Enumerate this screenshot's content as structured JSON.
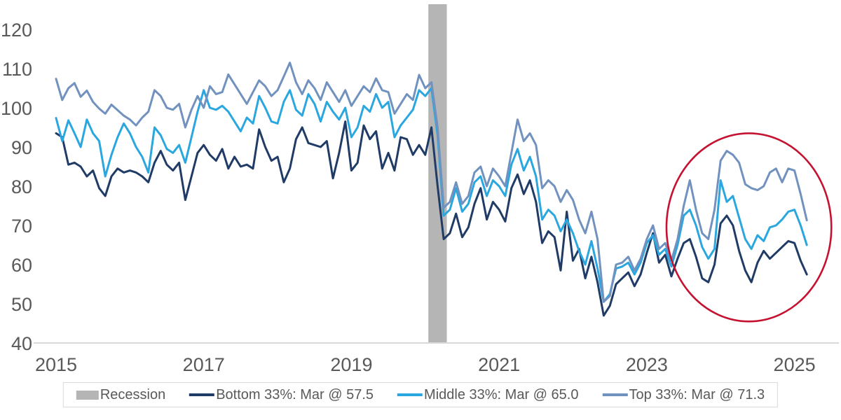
{
  "page": {
    "background": "#ffffff"
  },
  "chart_data": {
    "type": "line",
    "title": "",
    "xlabel": "",
    "ylabel": "",
    "grid": false,
    "x_unit": "month",
    "start_month": "2015-01",
    "end_month": "2025-03",
    "y_ticks": [
      40,
      50,
      60,
      70,
      80,
      90,
      100,
      110,
      120
    ],
    "ylim": [
      40,
      123
    ],
    "x_tick_labels": [
      "2015",
      "2017",
      "2019",
      "2021",
      "2023",
      "2025"
    ],
    "x_tick_month_indices": [
      0,
      24,
      48,
      72,
      96,
      120
    ],
    "tick_label_color": "#595959",
    "axis_line_color": "#d9d9d9",
    "recession_band": {
      "label": "Recession",
      "start_month": "2020-02",
      "end_month": "2020-04",
      "start_month_index": 61,
      "end_month_index": 63,
      "color": "#b5b5b5"
    },
    "series": [
      {
        "name": "Bottom 33%: Mar @ 57.5",
        "latest_point": {
          "month": "2025-03",
          "value": 57.5
        },
        "color": "#1f3b66",
        "values": [
          93.5,
          92.5,
          85.5,
          86.0,
          85.0,
          82.5,
          84.0,
          79.5,
          77.5,
          82.5,
          84.5,
          83.5,
          84.0,
          83.5,
          82.5,
          81.0,
          86.0,
          89.0,
          85.5,
          84.0,
          86.0,
          76.5,
          82.5,
          88.5,
          90.5,
          88.0,
          86.5,
          89.5,
          84.5,
          87.5,
          85.0,
          85.5,
          84.5,
          94.5,
          90.0,
          86.5,
          87.5,
          81.0,
          84.5,
          92.0,
          95.0,
          91.0,
          90.5,
          90.0,
          91.5,
          82.0,
          88.5,
          96.5,
          84.0,
          86.0,
          95.5,
          92.0,
          94.0,
          84.5,
          88.5,
          84.0,
          92.5,
          92.0,
          88.0,
          90.5,
          88.0,
          95.0,
          80.0,
          66.5,
          68.0,
          73.0,
          67.0,
          69.5,
          75.5,
          79.5,
          71.5,
          76.0,
          74.0,
          71.0,
          79.5,
          83.0,
          78.0,
          81.5,
          76.0,
          65.5,
          68.5,
          67.0,
          58.5,
          73.5,
          61.0,
          64.0,
          56.5,
          62.0,
          55.5,
          47.0,
          49.5,
          55.0,
          56.5,
          58.0,
          54.5,
          57.5,
          63.0,
          68.0,
          60.5,
          62.5,
          57.0,
          61.5,
          65.5,
          66.5,
          62.0,
          56.5,
          55.5,
          60.0,
          70.5,
          72.5,
          70.0,
          63.5,
          58.5,
          55.5,
          60.5,
          63.5,
          61.5,
          63.0,
          64.5,
          66.0,
          65.5,
          61.0,
          57.5
        ]
      },
      {
        "name": "Middle 33%: Mar @ 65.0",
        "latest_point": {
          "month": "2025-03",
          "value": 65.0
        },
        "color": "#2aa7df",
        "values": [
          97.4,
          91.5,
          96.8,
          93.5,
          90.0,
          97.0,
          93.5,
          91.5,
          82.5,
          88.0,
          92.5,
          96.0,
          93.5,
          90.0,
          87.5,
          83.5,
          95.0,
          93.0,
          89.5,
          88.5,
          90.5,
          86.0,
          92.5,
          99.0,
          104.5,
          100.0,
          99.5,
          100.5,
          99.0,
          96.5,
          94.0,
          97.5,
          96.0,
          103.0,
          100.0,
          96.5,
          96.0,
          101.5,
          104.5,
          99.5,
          98.0,
          103.5,
          101.0,
          96.5,
          101.5,
          99.0,
          97.0,
          100.0,
          92.5,
          95.0,
          100.5,
          99.0,
          103.5,
          100.0,
          101.5,
          92.5,
          95.5,
          97.5,
          99.5,
          104.5,
          103.0,
          105.0,
          93.0,
          72.5,
          74.0,
          79.5,
          73.5,
          75.5,
          81.0,
          82.5,
          77.5,
          81.5,
          80.0,
          77.5,
          85.5,
          89.5,
          84.0,
          87.5,
          82.5,
          71.5,
          74.0,
          72.5,
          68.5,
          71.5,
          68.0,
          63.5,
          60.0,
          66.0,
          59.0,
          50.5,
          52.5,
          59.0,
          59.5,
          60.5,
          57.5,
          60.5,
          65.5,
          67.5,
          62.5,
          64.0,
          59.5,
          65.0,
          72.5,
          74.0,
          70.0,
          64.5,
          61.5,
          64.0,
          81.5,
          76.0,
          77.5,
          72.0,
          66.5,
          64.0,
          67.5,
          66.0,
          69.5,
          70.0,
          71.5,
          73.5,
          74.0,
          70.0,
          65.0
        ]
      },
      {
        "name": "Top 33%: Mar @ 71.3",
        "latest_point": {
          "month": "2025-03",
          "value": 71.3
        },
        "color": "#7191be",
        "values": [
          107.4,
          102.0,
          105.0,
          106.3,
          102.8,
          104.4,
          101.5,
          99.8,
          98.5,
          100.8,
          99.4,
          98.0,
          97.0,
          95.5,
          97.5,
          99.0,
          104.5,
          103.0,
          100.0,
          99.5,
          101.0,
          95.0,
          99.5,
          103.0,
          100.0,
          105.5,
          103.5,
          104.0,
          108.5,
          106.0,
          103.5,
          101.0,
          104.0,
          107.0,
          105.5,
          103.0,
          104.5,
          108.0,
          111.5,
          106.5,
          103.5,
          107.0,
          105.0,
          102.0,
          106.5,
          104.0,
          101.5,
          104.5,
          100.5,
          103.0,
          105.5,
          104.0,
          107.5,
          104.5,
          104.0,
          98.5,
          101.0,
          103.5,
          102.0,
          108.4,
          105.0,
          106.5,
          95.0,
          74.5,
          76.0,
          81.0,
          75.5,
          77.5,
          83.5,
          85.0,
          80.0,
          84.5,
          82.5,
          80.0,
          88.5,
          97.0,
          91.5,
          93.5,
          90.5,
          79.5,
          81.5,
          80.0,
          76.0,
          79.0,
          76.5,
          71.5,
          68.0,
          73.5,
          66.5,
          50.5,
          52.0,
          60.0,
          60.5,
          62.0,
          58.5,
          61.5,
          66.5,
          70.0,
          64.0,
          65.5,
          61.0,
          66.5,
          75.0,
          81.5,
          74.0,
          68.0,
          66.5,
          74.0,
          86.5,
          89.0,
          88.0,
          86.0,
          80.5,
          79.5,
          79.0,
          80.0,
          83.5,
          84.5,
          81.0,
          84.5,
          84.0,
          78.0,
          71.3
        ]
      }
    ],
    "annotation": {
      "shape": "ellipse",
      "color": "#c51230",
      "center_month_index": 112.6,
      "center_value": 69.5,
      "radius_months": 13.4,
      "radius_value": 24
    },
    "legend_position": "bottom"
  },
  "legend": {
    "items": [
      {
        "label": "Recession",
        "swatch": "band",
        "color": "#b5b5b5"
      },
      {
        "label": "Bottom 33%: Mar @ 57.5",
        "swatch": "line",
        "color": "#1f3b66"
      },
      {
        "label": "Middle 33%: Mar @ 65.0",
        "swatch": "line",
        "color": "#2aa7df"
      },
      {
        "label": "Top 33%: Mar @ 71.3",
        "swatch": "line",
        "color": "#7191be"
      }
    ]
  }
}
